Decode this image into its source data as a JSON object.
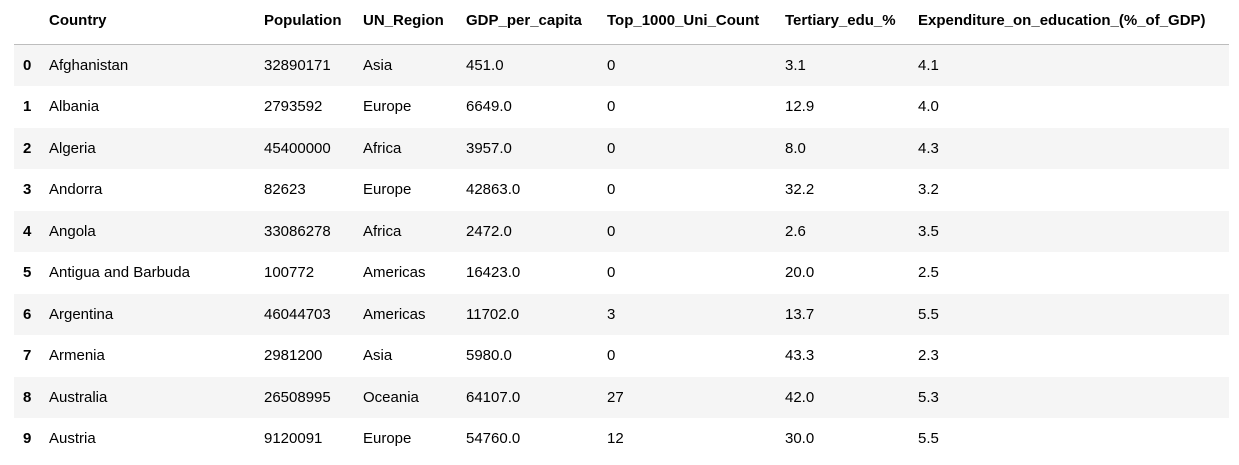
{
  "table": {
    "columns": [
      "Country",
      "Population",
      "UN_Region",
      "GDP_per_capita",
      "Top_1000_Uni_Count",
      "Tertiary_edu_%",
      "Expenditure_on_education_(%_of_GDP)"
    ],
    "rows": [
      {
        "index": "0",
        "cells": [
          "Afghanistan",
          "32890171",
          "Asia",
          "451.0",
          "0",
          "3.1",
          "4.1"
        ]
      },
      {
        "index": "1",
        "cells": [
          "Albania",
          "2793592",
          "Europe",
          "6649.0",
          "0",
          "12.9",
          "4.0"
        ]
      },
      {
        "index": "2",
        "cells": [
          "Algeria",
          "45400000",
          "Africa",
          "3957.0",
          "0",
          "8.0",
          "4.3"
        ]
      },
      {
        "index": "3",
        "cells": [
          "Andorra",
          "82623",
          "Europe",
          "42863.0",
          "0",
          "32.2",
          "3.2"
        ]
      },
      {
        "index": "4",
        "cells": [
          "Angola",
          "33086278",
          "Africa",
          "2472.0",
          "0",
          "2.6",
          "3.5"
        ]
      },
      {
        "index": "5",
        "cells": [
          "Antigua and Barbuda",
          "100772",
          "Americas",
          "16423.0",
          "0",
          "20.0",
          "2.5"
        ]
      },
      {
        "index": "6",
        "cells": [
          "Argentina",
          "46044703",
          "Americas",
          "11702.0",
          "3",
          "13.7",
          "5.5"
        ]
      },
      {
        "index": "7",
        "cells": [
          "Armenia",
          "2981200",
          "Asia",
          "5980.0",
          "0",
          "43.3",
          "2.3"
        ]
      },
      {
        "index": "8",
        "cells": [
          "Australia",
          "26508995",
          "Oceania",
          "64107.0",
          "27",
          "42.0",
          "5.3"
        ]
      },
      {
        "index": "9",
        "cells": [
          "Austria",
          "9120091",
          "Europe",
          "54760.0",
          "12",
          "30.0",
          "5.5"
        ]
      }
    ]
  }
}
